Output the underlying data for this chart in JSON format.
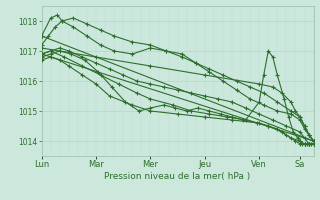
{
  "xlabel": "Pression niveau de la mer( hPa )",
  "bg_color": "#cce8dd",
  "plot_bg_color": "#cce8dd",
  "grid_major_color": "#aad4c8",
  "grid_minor_color": "#bbddd4",
  "line_color": "#2d6e2d",
  "ylim": [
    1013.5,
    1018.5
  ],
  "yticks": [
    1014,
    1015,
    1016,
    1017,
    1018
  ],
  "day_labels": [
    "Lun",
    "Mar",
    "Mer",
    "Jeu",
    "Ven",
    "Sa"
  ],
  "day_positions": [
    0,
    48,
    96,
    144,
    192,
    228
  ],
  "xlim": [
    0,
    240
  ],
  "lines": [
    {
      "t": [
        0,
        8,
        14,
        18,
        28,
        40,
        52,
        64,
        80,
        96,
        110,
        124,
        136,
        148,
        160,
        172,
        184,
        196,
        208,
        220,
        228,
        232,
        236,
        240
      ],
      "y": [
        1017.5,
        1018.1,
        1018.2,
        1018.0,
        1017.8,
        1017.5,
        1017.2,
        1017.0,
        1016.9,
        1017.1,
        1017.0,
        1016.9,
        1016.6,
        1016.3,
        1016.0,
        1015.7,
        1015.4,
        1015.2,
        1015.0,
        1014.9,
        1014.7,
        1014.4,
        1014.2,
        1014.0
      ]
    },
    {
      "t": [
        0,
        6,
        12,
        18,
        28,
        40,
        52,
        64,
        80,
        96,
        110,
        124,
        136,
        148,
        160,
        172,
        184,
        196,
        208,
        220,
        228,
        232,
        236,
        240
      ],
      "y": [
        1017.2,
        1017.5,
        1017.8,
        1018.0,
        1018.1,
        1017.9,
        1017.7,
        1017.5,
        1017.3,
        1017.2,
        1017.0,
        1016.8,
        1016.6,
        1016.4,
        1016.2,
        1016.0,
        1015.8,
        1015.6,
        1015.3,
        1015.0,
        1014.8,
        1014.5,
        1014.2,
        1014.0
      ]
    },
    {
      "t": [
        0,
        8,
        16,
        24,
        36,
        48,
        60,
        72,
        84,
        96,
        108,
        120,
        132,
        144,
        156,
        168,
        180,
        192,
        204,
        216,
        228,
        232,
        236,
        240
      ],
      "y": [
        1016.9,
        1017.0,
        1017.1,
        1017.0,
        1016.8,
        1016.6,
        1016.4,
        1016.2,
        1016.0,
        1015.9,
        1015.8,
        1015.7,
        1015.6,
        1015.5,
        1015.4,
        1015.3,
        1015.1,
        1014.9,
        1014.7,
        1014.5,
        1014.3,
        1014.1,
        1013.9,
        1013.9
      ]
    },
    {
      "t": [
        0,
        8,
        16,
        26,
        38,
        50,
        62,
        74,
        86,
        96,
        108,
        118,
        128,
        138,
        148,
        158,
        168,
        178,
        190,
        200,
        212,
        220,
        228,
        232,
        236,
        240
      ],
      "y": [
        1016.8,
        1016.9,
        1017.0,
        1016.9,
        1016.7,
        1016.3,
        1015.8,
        1015.3,
        1015.0,
        1015.1,
        1015.2,
        1015.1,
        1015.0,
        1015.1,
        1015.0,
        1014.9,
        1014.8,
        1014.7,
        1014.6,
        1014.5,
        1014.3,
        1014.1,
        1014.0,
        1013.9,
        1013.9,
        1013.9
      ]
    },
    {
      "t": [
        0,
        8,
        16,
        24,
        36,
        48,
        60,
        80,
        96,
        120,
        144,
        168,
        192,
        200,
        208,
        216,
        224,
        228,
        232,
        236,
        240
      ],
      "y": [
        1016.7,
        1016.8,
        1016.7,
        1016.5,
        1016.2,
        1015.9,
        1015.5,
        1015.2,
        1015.0,
        1014.9,
        1014.8,
        1014.7,
        1014.6,
        1014.5,
        1014.4,
        1014.2,
        1014.0,
        1013.9,
        1013.9,
        1013.9,
        1013.9
      ]
    },
    {
      "t": [
        0,
        240
      ],
      "y": [
        1017.5,
        1014.0
      ]
    },
    {
      "t": [
        0,
        240
      ],
      "y": [
        1016.9,
        1014.0
      ]
    },
    {
      "t": [
        0,
        48,
        96,
        144,
        192,
        204,
        212,
        220,
        224,
        228,
        232,
        236,
        240
      ],
      "y": [
        1017.1,
        1016.8,
        1016.5,
        1016.2,
        1015.9,
        1015.8,
        1015.6,
        1015.3,
        1015.0,
        1014.8,
        1014.5,
        1014.2,
        1014.0
      ]
    },
    {
      "t": [
        0,
        8,
        20,
        36,
        52,
        68,
        84,
        96,
        116,
        132,
        148,
        164,
        180,
        192,
        196,
        200,
        204,
        208,
        214,
        218,
        222,
        226,
        228,
        230,
        232,
        234,
        236,
        238,
        240
      ],
      "y": [
        1016.9,
        1017.0,
        1016.8,
        1016.5,
        1016.2,
        1015.9,
        1015.6,
        1015.4,
        1015.2,
        1015.0,
        1014.9,
        1014.8,
        1014.7,
        1015.3,
        1016.2,
        1017.0,
        1016.8,
        1016.2,
        1015.4,
        1014.8,
        1014.3,
        1014.1,
        1014.0,
        1013.9,
        1013.9,
        1013.9,
        1013.9,
        1013.9,
        1013.9
      ]
    }
  ]
}
